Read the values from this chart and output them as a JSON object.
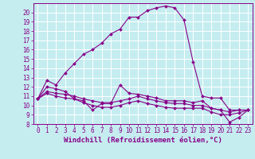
{
  "xlabel": "Windchill (Refroidissement éolien,°C)",
  "xlim": [
    -0.5,
    23.5
  ],
  "ylim": [
    8,
    21
  ],
  "xticks": [
    0,
    1,
    2,
    3,
    4,
    5,
    6,
    7,
    8,
    9,
    10,
    11,
    12,
    13,
    14,
    15,
    16,
    17,
    18,
    19,
    20,
    21,
    22,
    23
  ],
  "yticks": [
    8,
    9,
    10,
    11,
    12,
    13,
    14,
    15,
    16,
    17,
    18,
    19,
    20
  ],
  "background_color": "#c5edf0",
  "line_color": "#880088",
  "grid_color": "#ffffff",
  "series": [
    {
      "x": [
        0,
        1,
        2,
        3,
        4,
        5,
        6,
        7,
        8,
        9,
        10,
        11,
        12,
        13,
        14,
        15,
        16,
        17,
        18,
        19,
        20,
        21,
        22,
        23
      ],
      "y": [
        10.7,
        12.7,
        12.2,
        13.5,
        14.5,
        15.5,
        16.0,
        16.7,
        17.7,
        18.2,
        19.5,
        19.5,
        20.2,
        20.5,
        20.7,
        20.5,
        19.2,
        14.7,
        11.0,
        10.8,
        10.8,
        9.5,
        9.5,
        9.5
      ]
    },
    {
      "x": [
        0,
        1,
        2,
        3,
        4,
        5,
        6,
        7,
        8,
        9,
        10,
        11,
        12,
        13,
        14,
        15,
        16,
        17,
        18,
        19,
        20,
        21,
        22,
        23
      ],
      "y": [
        10.7,
        12.0,
        11.8,
        11.5,
        10.7,
        10.5,
        9.5,
        10.2,
        10.2,
        12.2,
        11.3,
        11.2,
        11.0,
        10.8,
        10.5,
        10.5,
        10.5,
        10.3,
        10.5,
        9.7,
        9.5,
        8.2,
        8.7,
        9.5
      ]
    },
    {
      "x": [
        0,
        1,
        2,
        3,
        4,
        5,
        6,
        7,
        8,
        9,
        10,
        11,
        12,
        13,
        14,
        15,
        16,
        17,
        18,
        19,
        20,
        21,
        22,
        23
      ],
      "y": [
        10.7,
        11.5,
        11.3,
        11.2,
        11.0,
        10.7,
        10.5,
        10.3,
        10.3,
        10.5,
        10.7,
        11.0,
        10.7,
        10.5,
        10.3,
        10.2,
        10.2,
        10.0,
        10.0,
        9.7,
        9.5,
        9.3,
        9.5,
        9.5
      ]
    },
    {
      "x": [
        0,
        1,
        2,
        3,
        4,
        5,
        6,
        7,
        8,
        9,
        10,
        11,
        12,
        13,
        14,
        15,
        16,
        17,
        18,
        19,
        20,
        21,
        22,
        23
      ],
      "y": [
        10.7,
        11.3,
        11.0,
        10.8,
        10.7,
        10.3,
        10.0,
        9.8,
        9.8,
        10.0,
        10.3,
        10.5,
        10.2,
        10.0,
        9.8,
        9.7,
        9.7,
        9.7,
        9.7,
        9.3,
        9.0,
        9.0,
        9.2,
        9.5
      ]
    }
  ],
  "font_size_xlabel": 6.5,
  "tick_font_size": 5.5,
  "marker": "D",
  "marker_size": 2.0,
  "linewidth": 0.8
}
